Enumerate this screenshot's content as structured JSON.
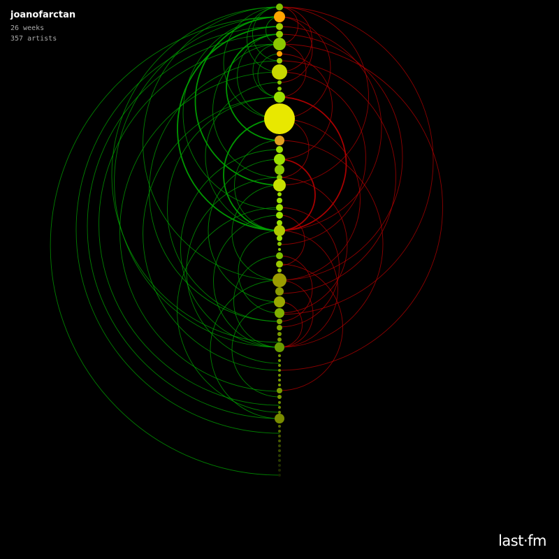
{
  "header": {
    "username": "joanofarctan",
    "weeks": "26 weeks",
    "artists": "357 artists"
  },
  "logo": {
    "text": "last·fm"
  },
  "colors": {
    "background": "#000000",
    "arc_up": "#00a000",
    "arc_down": "#b00000",
    "node_hot": "#ffaa00",
    "node_mid": "#e6e600",
    "node_cool": "#7a8c00"
  },
  "chart_data": {
    "type": "scatter",
    "title": "",
    "description_axis": "vertical timeline of artists; node size = plays, arcs connect related positions",
    "nodes": [
      {
        "y": 10,
        "r": 5,
        "color": "#7fbf00"
      },
      {
        "y": 24,
        "r": 8,
        "color": "#ffa500"
      },
      {
        "y": 38,
        "r": 5,
        "color": "#9acd00"
      },
      {
        "y": 49,
        "r": 5,
        "color": "#8fcf00"
      },
      {
        "y": 63,
        "r": 9,
        "color": "#8cc800"
      },
      {
        "y": 77,
        "r": 4,
        "color": "#ffa500"
      },
      {
        "y": 87,
        "r": 4,
        "color": "#9acd00"
      },
      {
        "y": 103,
        "r": 11,
        "color": "#c8d800"
      },
      {
        "y": 118,
        "r": 3,
        "color": "#8cc800"
      },
      {
        "y": 127,
        "r": 3,
        "color": "#8cc800"
      },
      {
        "y": 139,
        "r": 8,
        "color": "#9ce000"
      },
      {
        "y": 170,
        "r": 22,
        "color": "#e8e800"
      },
      {
        "y": 201,
        "r": 7,
        "color": "#e0a020"
      },
      {
        "y": 214,
        "r": 5,
        "color": "#9ce000"
      },
      {
        "y": 228,
        "r": 8,
        "color": "#9ce000"
      },
      {
        "y": 243,
        "r": 7,
        "color": "#8cc800"
      },
      {
        "y": 254,
        "r": 4,
        "color": "#8cc800"
      },
      {
        "y": 265,
        "r": 9,
        "color": "#c8e000"
      },
      {
        "y": 278,
        "r": 3,
        "color": "#9ce000"
      },
      {
        "y": 287,
        "r": 4,
        "color": "#9ce000"
      },
      {
        "y": 297,
        "r": 5,
        "color": "#9ce000"
      },
      {
        "y": 308,
        "r": 5,
        "color": "#9ce000"
      },
      {
        "y": 319,
        "r": 4,
        "color": "#9ce000"
      },
      {
        "y": 330,
        "r": 8,
        "color": "#b0c800"
      },
      {
        "y": 341,
        "r": 4,
        "color": "#9ce000"
      },
      {
        "y": 349,
        "r": 3,
        "color": "#8cc800"
      },
      {
        "y": 357,
        "r": 2,
        "color": "#8cc800"
      },
      {
        "y": 366,
        "r": 5,
        "color": "#7fbf00"
      },
      {
        "y": 378,
        "r": 5,
        "color": "#9ac800"
      },
      {
        "y": 387,
        "r": 3,
        "color": "#9ac800"
      },
      {
        "y": 401,
        "r": 10,
        "color": "#9a9c00"
      },
      {
        "y": 417,
        "r": 6,
        "color": "#8c9c00"
      },
      {
        "y": 432,
        "r": 8,
        "color": "#9aa800"
      },
      {
        "y": 448,
        "r": 7,
        "color": "#80b000"
      },
      {
        "y": 460,
        "r": 4,
        "color": "#7fa800"
      },
      {
        "y": 469,
        "r": 4,
        "color": "#7fa800"
      },
      {
        "y": 478,
        "r": 3,
        "color": "#7a9c00"
      },
      {
        "y": 486,
        "r": 3,
        "color": "#7a9c00"
      },
      {
        "y": 497,
        "r": 7,
        "color": "#6a9c00"
      },
      {
        "y": 509,
        "r": 2,
        "color": "#7a9c00"
      },
      {
        "y": 516,
        "r": 2,
        "color": "#7a9c00"
      },
      {
        "y": 523,
        "r": 2,
        "color": "#7a9c00"
      },
      {
        "y": 530,
        "r": 2,
        "color": "#7a9c00"
      },
      {
        "y": 537,
        "r": 2,
        "color": "#7a9c00"
      },
      {
        "y": 544,
        "r": 2,
        "color": "#7a9c00"
      },
      {
        "y": 551,
        "r": 2,
        "color": "#7a9c00"
      },
      {
        "y": 559,
        "r": 4,
        "color": "#7a9c00"
      },
      {
        "y": 568,
        "r": 3,
        "color": "#7a9c00"
      },
      {
        "y": 576,
        "r": 2,
        "color": "#6c8c00"
      },
      {
        "y": 583,
        "r": 2,
        "color": "#6c8c00"
      },
      {
        "y": 590,
        "r": 2,
        "color": "#6c8c00"
      },
      {
        "y": 599,
        "r": 7,
        "color": "#7a8c00"
      },
      {
        "y": 610,
        "r": 2,
        "color": "#5a6c00"
      },
      {
        "y": 617,
        "r": 2,
        "color": "#5a6c00"
      },
      {
        "y": 624,
        "r": 2,
        "color": "#4a5c00"
      },
      {
        "y": 631,
        "r": 2,
        "color": "#4a5c00"
      },
      {
        "y": 638,
        "r": 2,
        "color": "#3a4c00"
      },
      {
        "y": 645,
        "r": 2,
        "color": "#3a4c00"
      },
      {
        "y": 652,
        "r": 2,
        "color": "#2a3c00"
      },
      {
        "y": 659,
        "r": 2,
        "color": "#2a3c00"
      },
      {
        "y": 666,
        "r": 2,
        "color": "#202c00"
      },
      {
        "y": 673,
        "r": 2,
        "color": "#202c00"
      },
      {
        "y": 680,
        "r": 2,
        "color": "#182200"
      }
    ],
    "arcs": [
      {
        "from": 24,
        "to": 680,
        "side": "left",
        "w": 1
      },
      {
        "from": 38,
        "to": 620,
        "side": "left",
        "w": 1
      },
      {
        "from": 49,
        "to": 599,
        "side": "left",
        "w": 1
      },
      {
        "from": 63,
        "to": 580,
        "side": "left",
        "w": 1
      },
      {
        "from": 24,
        "to": 497,
        "side": "left",
        "w": 1
      },
      {
        "from": 103,
        "to": 560,
        "side": "left",
        "w": 1
      },
      {
        "from": 139,
        "to": 530,
        "side": "left",
        "w": 1
      },
      {
        "from": 87,
        "to": 460,
        "side": "left",
        "w": 1
      },
      {
        "from": 10,
        "to": 401,
        "side": "left",
        "w": 1
      },
      {
        "from": 38,
        "to": 330,
        "side": "left",
        "w": 2
      },
      {
        "from": 24,
        "to": 265,
        "side": "left",
        "w": 2
      },
      {
        "from": 49,
        "to": 201,
        "side": "left",
        "w": 2
      },
      {
        "from": 63,
        "to": 139,
        "side": "left",
        "w": 1
      },
      {
        "from": 10,
        "to": 103,
        "side": "left",
        "w": 1
      },
      {
        "from": 24,
        "to": 63,
        "side": "left",
        "w": 1
      },
      {
        "from": 77,
        "to": 139,
        "side": "left",
        "w": 1
      },
      {
        "from": 170,
        "to": 330,
        "side": "left",
        "w": 2
      },
      {
        "from": 201,
        "to": 330,
        "side": "left",
        "w": 1
      },
      {
        "from": 228,
        "to": 432,
        "side": "left",
        "w": 1
      },
      {
        "from": 265,
        "to": 401,
        "side": "left",
        "w": 1
      },
      {
        "from": 214,
        "to": 497,
        "side": "left",
        "w": 1
      },
      {
        "from": 308,
        "to": 497,
        "side": "left",
        "w": 1
      },
      {
        "from": 330,
        "to": 448,
        "side": "left",
        "w": 1
      },
      {
        "from": 366,
        "to": 497,
        "side": "left",
        "w": 1
      },
      {
        "from": 401,
        "to": 599,
        "side": "left",
        "w": 1
      },
      {
        "from": 432,
        "to": 568,
        "side": "left",
        "w": 1
      },
      {
        "from": 297,
        "to": 590,
        "side": "left",
        "w": 1
      },
      {
        "from": 254,
        "to": 520,
        "side": "left",
        "w": 1
      },
      {
        "from": 139,
        "to": 460,
        "side": "left",
        "w": 1
      },
      {
        "from": 118,
        "to": 330,
        "side": "left",
        "w": 1
      },
      {
        "from": 63,
        "to": 254,
        "side": "left",
        "w": 1
      },
      {
        "from": 10,
        "to": 170,
        "side": "left",
        "w": 1
      },
      {
        "from": 10,
        "to": 87,
        "side": "left",
        "w": 1
      },
      {
        "from": 49,
        "to": 170,
        "side": "left",
        "w": 1
      },
      {
        "from": 24,
        "to": 300,
        "side": "left",
        "w": 1
      },
      {
        "from": 10,
        "to": 490,
        "side": "left",
        "w": 1
      },
      {
        "from": 10,
        "to": 103,
        "side": "right",
        "w": 1
      },
      {
        "from": 24,
        "to": 170,
        "side": "right",
        "w": 1
      },
      {
        "from": 10,
        "to": 265,
        "side": "right",
        "w": 1
      },
      {
        "from": 38,
        "to": 330,
        "side": "right",
        "w": 1
      },
      {
        "from": 10,
        "to": 450,
        "side": "right",
        "w": 1
      },
      {
        "from": 63,
        "to": 530,
        "side": "right",
        "w": 1
      },
      {
        "from": 49,
        "to": 401,
        "side": "right",
        "w": 1
      },
      {
        "from": 87,
        "to": 420,
        "side": "right",
        "w": 1
      },
      {
        "from": 103,
        "to": 350,
        "side": "right",
        "w": 1
      },
      {
        "from": 139,
        "to": 330,
        "side": "right",
        "w": 2
      },
      {
        "from": 170,
        "to": 401,
        "side": "right",
        "w": 1
      },
      {
        "from": 201,
        "to": 497,
        "side": "right",
        "w": 1
      },
      {
        "from": 228,
        "to": 330,
        "side": "right",
        "w": 2
      },
      {
        "from": 254,
        "to": 448,
        "side": "right",
        "w": 1
      },
      {
        "from": 297,
        "to": 468,
        "side": "right",
        "w": 1
      },
      {
        "from": 330,
        "to": 497,
        "side": "right",
        "w": 1
      },
      {
        "from": 366,
        "to": 460,
        "side": "right",
        "w": 1
      },
      {
        "from": 401,
        "to": 497,
        "side": "right",
        "w": 1
      },
      {
        "from": 378,
        "to": 559,
        "side": "right",
        "w": 1
      },
      {
        "from": 308,
        "to": 380,
        "side": "right",
        "w": 1
      },
      {
        "from": 10,
        "to": 63,
        "side": "right",
        "w": 1
      },
      {
        "from": 63,
        "to": 139,
        "side": "right",
        "w": 1
      },
      {
        "from": 77,
        "to": 228,
        "side": "right",
        "w": 1
      },
      {
        "from": 24,
        "to": 118,
        "side": "right",
        "w": 1
      },
      {
        "from": 170,
        "to": 254,
        "side": "right",
        "w": 1
      },
      {
        "from": 432,
        "to": 497,
        "side": "right",
        "w": 1
      }
    ]
  }
}
